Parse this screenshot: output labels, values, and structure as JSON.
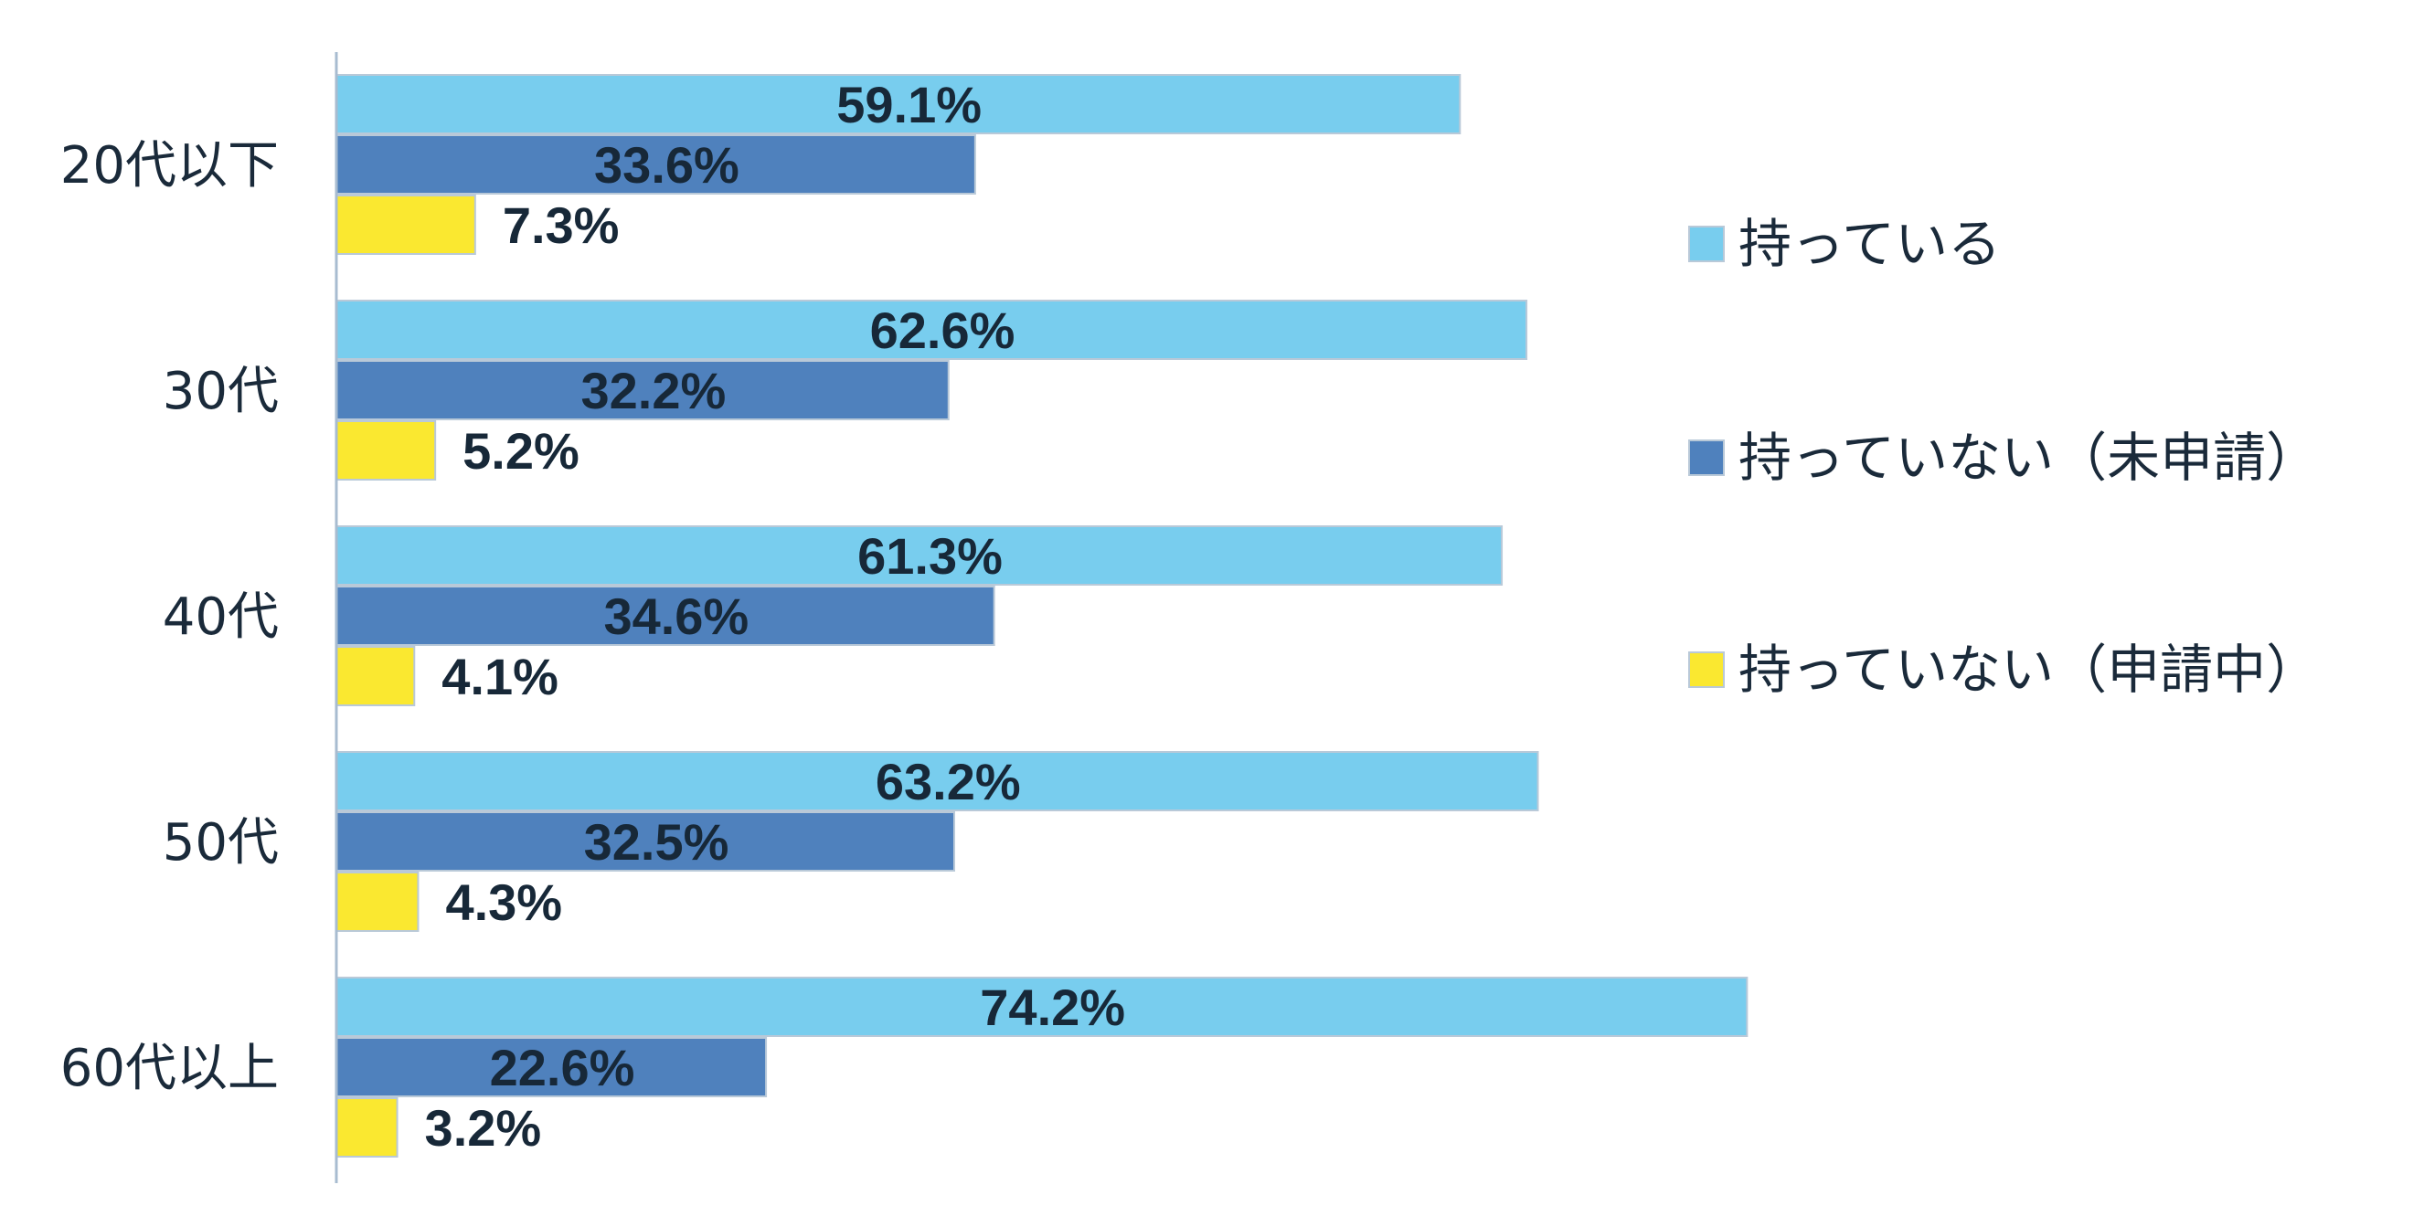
{
  "chart_data": {
    "type": "bar",
    "orientation": "horizontal",
    "categories": [
      "20代以下",
      "30代",
      "40代",
      "50代",
      "60代以上"
    ],
    "series": [
      {
        "name": "持っている",
        "color": "#78CDEE",
        "values": [
          59.1,
          62.6,
          61.3,
          63.2,
          74.2
        ],
        "labels": [
          "59.1%",
          "62.6%",
          "61.3%",
          "63.2%",
          "74.2%"
        ]
      },
      {
        "name": "持っていない（未申請）",
        "color": "#4F81BD",
        "values": [
          33.6,
          32.2,
          34.6,
          32.5,
          22.6
        ],
        "labels": [
          "33.6%",
          "32.2%",
          "34.6%",
          "32.5%",
          "22.6%"
        ]
      },
      {
        "name": "持っていない（申請中）",
        "color": "#FAE830",
        "values": [
          7.3,
          5.2,
          4.1,
          4.3,
          3.2
        ],
        "labels": [
          "7.3%",
          "5.2%",
          "4.1%",
          "4.3%",
          "3.2%"
        ]
      }
    ],
    "value_unit": "%",
    "xlim": [
      0,
      100
    ],
    "grid": false,
    "legend_position": "right",
    "title": "",
    "xlabel": "",
    "ylabel": ""
  }
}
